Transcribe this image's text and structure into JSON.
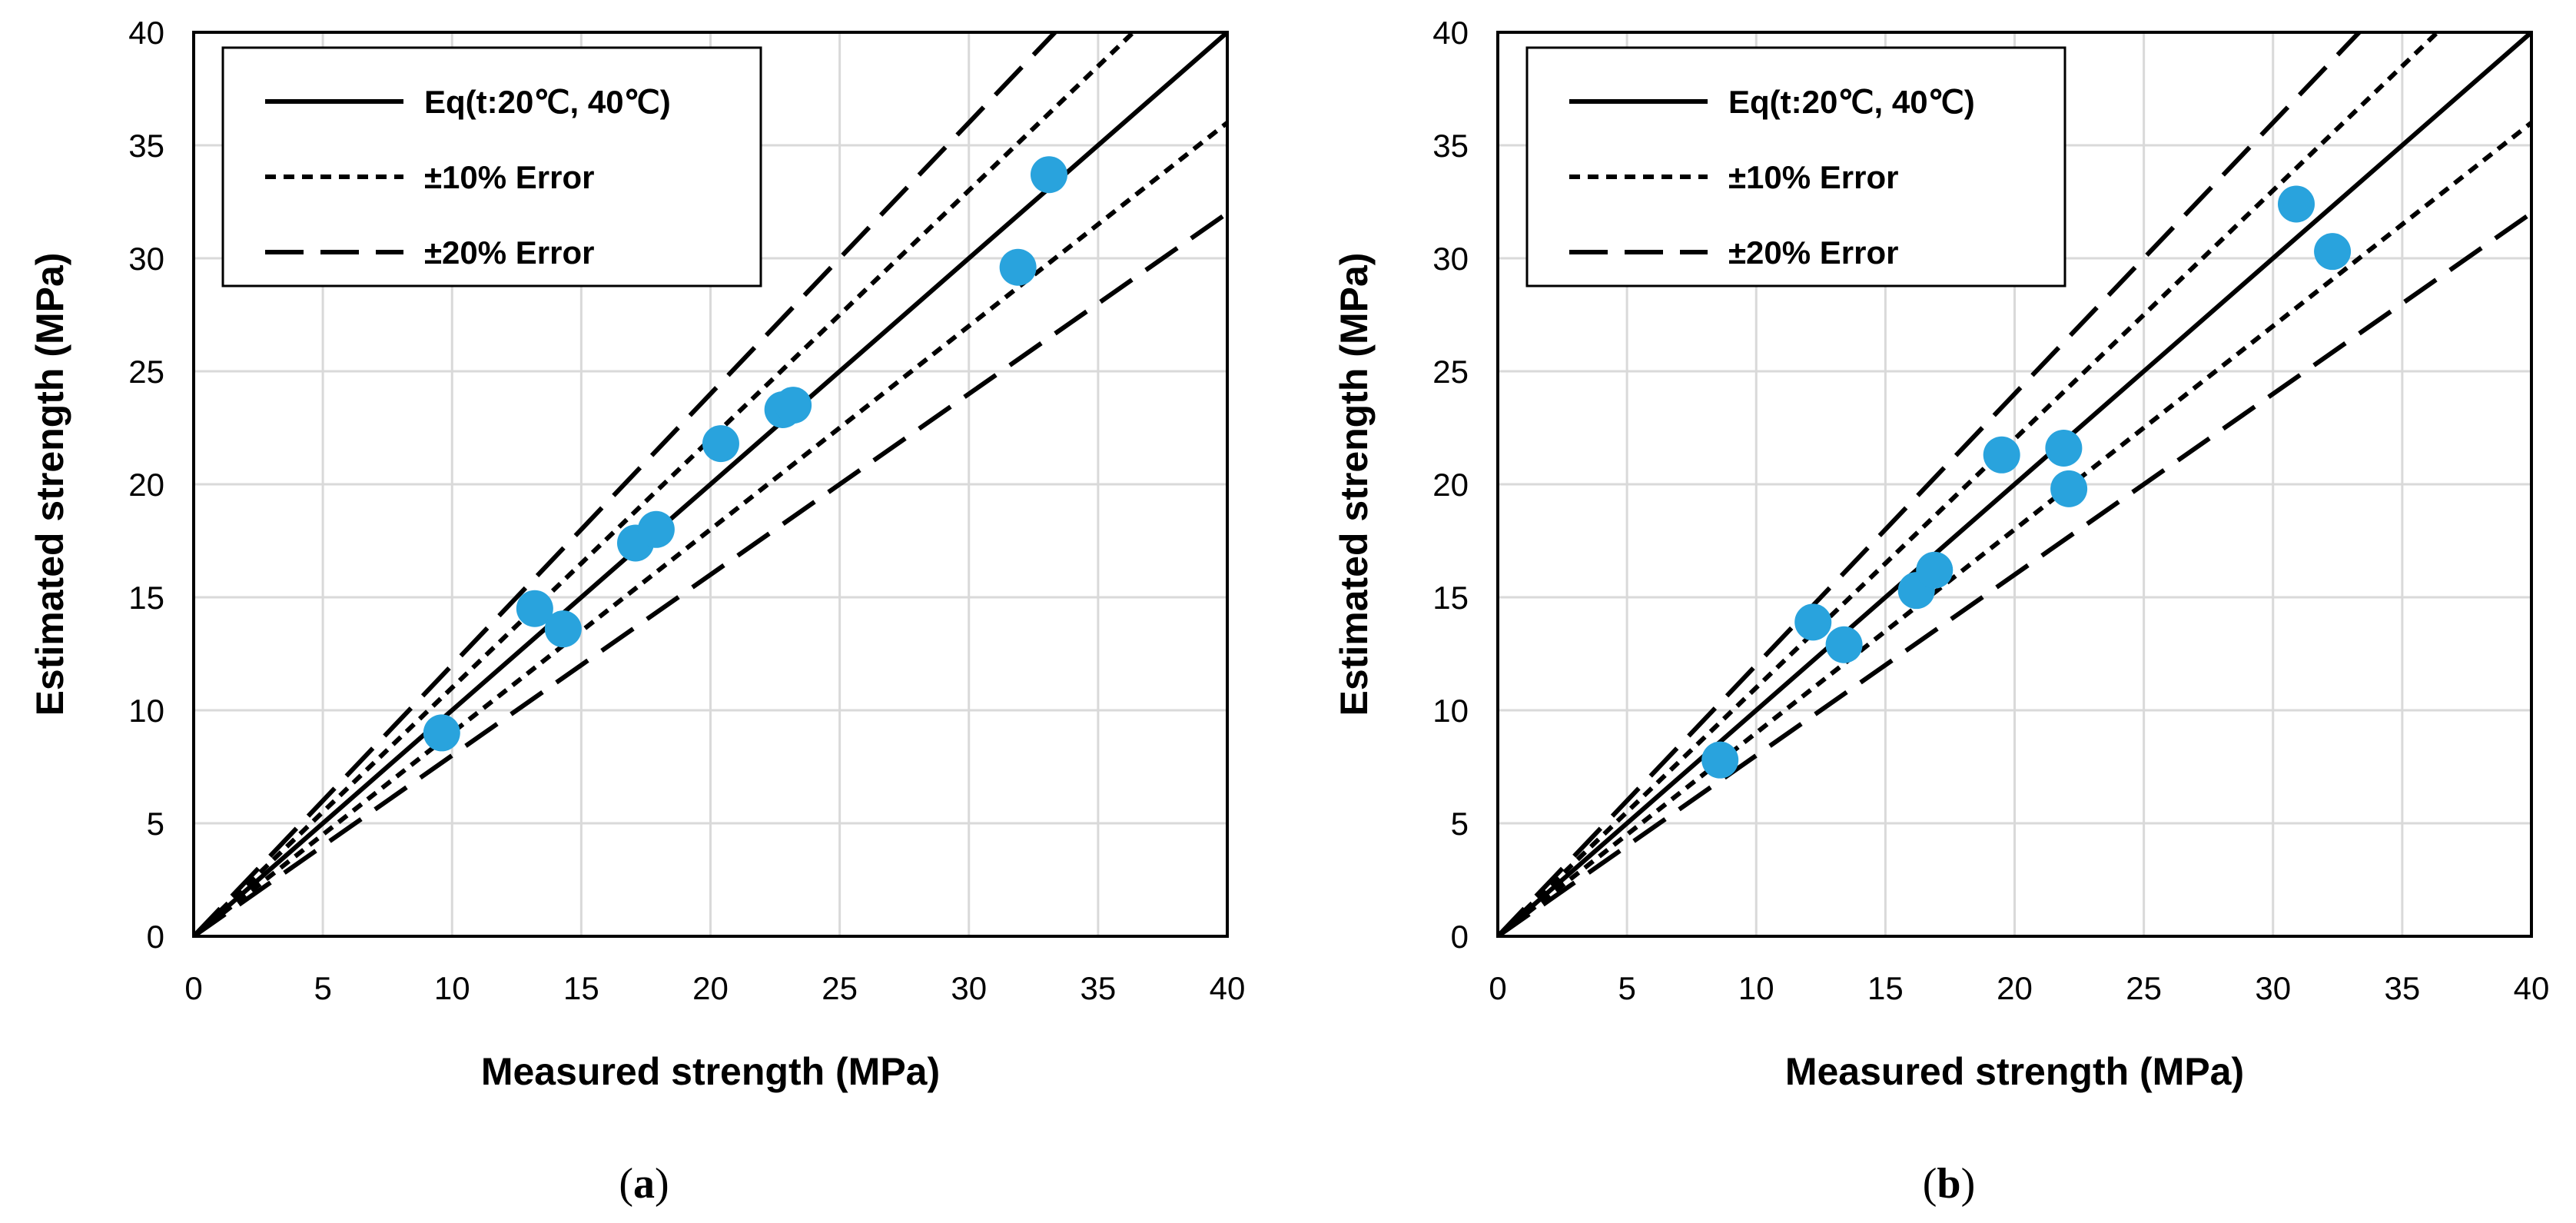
{
  "chart_data": [
    {
      "type": "scatter",
      "caption_open": "(",
      "caption_letter": "a",
      "caption_close": ")",
      "xlabel": "Measured strength (MPa)",
      "ylabel": "Estimated strength (MPa)",
      "xlim": [
        0,
        40
      ],
      "ylim": [
        0,
        40
      ],
      "xticks": [
        "0",
        "5",
        "10",
        "15",
        "20",
        "25",
        "30",
        "35",
        "40"
      ],
      "yticks": [
        "0",
        "5",
        "10",
        "15",
        "20",
        "25",
        "30",
        "35",
        "40"
      ],
      "grid": true,
      "legend_position": "top-left",
      "legend": [
        {
          "label": "Eq(t:20℃, 40℃)",
          "style": "solid"
        },
        {
          "label": "±10% Error",
          "style": "short-dash"
        },
        {
          "label": "±20% Error",
          "style": "long-dash"
        }
      ],
      "reference_lines": [
        {
          "name": "Eq(t:20℃, 40℃)",
          "slope": 1.0,
          "style": "solid"
        },
        {
          "name": "+10% Error",
          "slope": 1.1,
          "style": "short-dash"
        },
        {
          "name": "-10% Error",
          "slope": 0.9,
          "style": "short-dash"
        },
        {
          "name": "+20% Error",
          "slope": 1.2,
          "style": "long-dash"
        },
        {
          "name": "-20% Error",
          "slope": 0.8,
          "style": "long-dash"
        }
      ],
      "marker_color": "#29A3DD",
      "points": [
        {
          "x": 9.6,
          "y": 9.0
        },
        {
          "x": 13.2,
          "y": 14.5
        },
        {
          "x": 14.3,
          "y": 13.6
        },
        {
          "x": 17.1,
          "y": 17.4
        },
        {
          "x": 17.9,
          "y": 18.0
        },
        {
          "x": 20.4,
          "y": 21.8
        },
        {
          "x": 22.8,
          "y": 23.3
        },
        {
          "x": 23.2,
          "y": 23.5
        },
        {
          "x": 31.9,
          "y": 29.6
        },
        {
          "x": 33.1,
          "y": 33.7
        }
      ]
    },
    {
      "type": "scatter",
      "caption_open": "(",
      "caption_letter": "b",
      "caption_close": ")",
      "xlabel": "Measured strength (MPa)",
      "ylabel": "Estimated strength (MPa)",
      "xlim": [
        0,
        40
      ],
      "ylim": [
        0,
        40
      ],
      "xticks": [
        "0",
        "5",
        "10",
        "15",
        "20",
        "25",
        "30",
        "35",
        "40"
      ],
      "yticks": [
        "0",
        "5",
        "10",
        "15",
        "20",
        "25",
        "30",
        "35",
        "40"
      ],
      "grid": true,
      "legend_position": "top-left",
      "legend": [
        {
          "label": "Eq(t:20℃, 40℃)",
          "style": "solid"
        },
        {
          "label": "±10% Error",
          "style": "short-dash"
        },
        {
          "label": "±20% Error",
          "style": "long-dash"
        }
      ],
      "reference_lines": [
        {
          "name": "Eq(t:20℃, 40℃)",
          "slope": 1.0,
          "style": "solid"
        },
        {
          "name": "+10% Error",
          "slope": 1.1,
          "style": "short-dash"
        },
        {
          "name": "-10% Error",
          "slope": 0.9,
          "style": "short-dash"
        },
        {
          "name": "+20% Error",
          "slope": 1.2,
          "style": "long-dash"
        },
        {
          "name": "-20% Error",
          "slope": 0.8,
          "style": "long-dash"
        }
      ],
      "marker_color": "#29A3DD",
      "points": [
        {
          "x": 8.6,
          "y": 7.8
        },
        {
          "x": 12.2,
          "y": 13.9
        },
        {
          "x": 13.4,
          "y": 12.9
        },
        {
          "x": 16.2,
          "y": 15.3
        },
        {
          "x": 16.9,
          "y": 16.2
        },
        {
          "x": 19.5,
          "y": 21.3
        },
        {
          "x": 21.9,
          "y": 21.6
        },
        {
          "x": 22.1,
          "y": 19.8
        },
        {
          "x": 30.9,
          "y": 32.4
        },
        {
          "x": 32.3,
          "y": 30.3
        }
      ]
    }
  ]
}
